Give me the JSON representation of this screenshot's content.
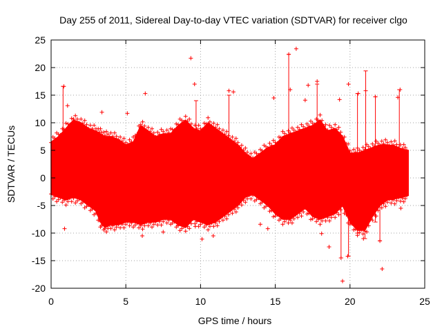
{
  "chart_data": {
    "type": "scatter",
    "title": "Day 255 of 2011, Sidereal Day-to-day VTEC variation (SDTVAR) for receiver clgo",
    "xlabel": "GPS time / hours",
    "ylabel": "SDTVAR / TECUs",
    "xlim": [
      0,
      25
    ],
    "ylim": [
      -20,
      25
    ],
    "xticks": [
      0,
      5,
      10,
      15,
      20,
      25
    ],
    "yticks": [
      -20,
      -15,
      -10,
      -5,
      0,
      5,
      10,
      15,
      20,
      25
    ],
    "grid": true,
    "color": "#ff0000",
    "marker": "plus with error bars",
    "series": [
      {
        "name": "SDTVAR",
        "envelope": {
          "x": [
            0.0,
            0.5,
            1.0,
            1.5,
            2.0,
            2.5,
            3.0,
            3.3,
            3.6,
            4.0,
            4.5,
            5.0,
            5.5,
            6.0,
            6.5,
            7.0,
            7.5,
            8.0,
            8.5,
            9.0,
            9.5,
            10.0,
            10.5,
            11.0,
            11.5,
            12.0,
            12.5,
            13.0,
            13.5,
            14.0,
            14.5,
            15.0,
            15.5,
            16.0,
            16.5,
            17.0,
            17.5,
            18.0,
            18.5,
            19.0,
            19.5,
            20.0,
            20.5,
            21.0,
            21.5,
            22.0,
            22.5,
            23.0,
            23.5,
            23.9
          ],
          "upper": [
            6.5,
            7.5,
            9.0,
            10.5,
            10.0,
            9.0,
            8.5,
            8.0,
            7.5,
            7.5,
            7.0,
            6.0,
            6.5,
            9.5,
            8.5,
            7.5,
            8.0,
            8.0,
            9.5,
            10.5,
            9.0,
            8.5,
            10.0,
            9.0,
            8.0,
            7.0,
            6.0,
            4.5,
            3.5,
            4.5,
            5.5,
            6.0,
            7.5,
            8.0,
            8.5,
            9.0,
            9.5,
            10.5,
            8.5,
            9.0,
            7.5,
            4.5,
            4.5,
            5.0,
            5.5,
            6.0,
            6.0,
            5.8,
            5.2,
            5.0
          ],
          "lower": [
            -3.0,
            -3.5,
            -4.0,
            -3.5,
            -4.0,
            -5.0,
            -6.0,
            -8.0,
            -9.0,
            -8.5,
            -8.5,
            -8.0,
            -8.0,
            -8.5,
            -8.0,
            -8.0,
            -7.5,
            -7.5,
            -8.5,
            -9.0,
            -7.5,
            -8.0,
            -8.5,
            -8.0,
            -7.0,
            -6.0,
            -5.0,
            -3.5,
            -3.0,
            -4.0,
            -5.0,
            -6.5,
            -7.5,
            -7.5,
            -6.5,
            -5.5,
            -7.0,
            -7.5,
            -7.0,
            -6.5,
            -5.0,
            -8.0,
            -9.5,
            -9.5,
            -7.0,
            -5.0,
            -4.0,
            -3.8,
            -3.5,
            -3.2
          ]
        },
        "outliers": [
          [
            0.85,
            16.6
          ],
          [
            0.9,
            -9.2
          ],
          [
            1.1,
            13.1
          ],
          [
            3.4,
            11.9
          ],
          [
            5.1,
            11.7
          ],
          [
            6.1,
            -10.5
          ],
          [
            6.3,
            15.3
          ],
          [
            7.5,
            -9.8
          ],
          [
            8.5,
            -8.6
          ],
          [
            9.35,
            21.7
          ],
          [
            9.6,
            17.0
          ],
          [
            9.65,
            -8.8
          ],
          [
            10.1,
            -11.1
          ],
          [
            10.85,
            -10.5
          ],
          [
            11.9,
            15.8
          ],
          [
            12.2,
            15.6
          ],
          [
            14.0,
            -8.4
          ],
          [
            14.5,
            -9.2
          ],
          [
            14.9,
            14.5
          ],
          [
            15.9,
            22.4
          ],
          [
            16.0,
            16.0
          ],
          [
            16.4,
            23.4
          ],
          [
            17.0,
            14.1
          ],
          [
            17.2,
            16.8
          ],
          [
            17.8,
            17.5
          ],
          [
            18.1,
            -10.1
          ],
          [
            18.6,
            -12.5
          ],
          [
            19.3,
            14.2
          ],
          [
            19.4,
            -14.5
          ],
          [
            19.5,
            -18.7
          ],
          [
            19.9,
            17.0
          ],
          [
            19.85,
            -14.2
          ],
          [
            20.1,
            -8.0
          ],
          [
            20.55,
            15.3
          ],
          [
            20.9,
            -11.0
          ],
          [
            21.05,
            15.8
          ],
          [
            21.7,
            14.7
          ],
          [
            22.0,
            -11.4
          ],
          [
            22.15,
            -16.5
          ],
          [
            23.2,
            14.6
          ],
          [
            23.35,
            16.0
          ],
          [
            23.4,
            -5.5
          ]
        ],
        "error_bars": [
          [
            0.8,
            5.0,
            16.6
          ],
          [
            9.7,
            -5.0,
            14.0
          ],
          [
            11.9,
            -2.0,
            15.0
          ],
          [
            15.9,
            -2.0,
            22.4
          ],
          [
            17.8,
            -3.0,
            17.0
          ],
          [
            19.4,
            -14.5,
            -5.0
          ],
          [
            19.9,
            -14.2,
            2.0
          ],
          [
            20.5,
            -10.0,
            15.3
          ],
          [
            21.0,
            -11.0,
            3.0
          ],
          [
            21.05,
            -2.0,
            19.4
          ],
          [
            21.7,
            -8.0,
            14.7
          ],
          [
            22.0,
            -11.4,
            -3.0
          ],
          [
            23.3,
            2.0,
            16.0
          ]
        ]
      }
    ]
  }
}
